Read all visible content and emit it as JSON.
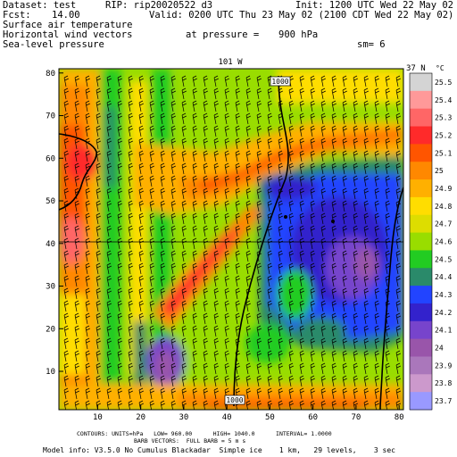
{
  "header": {
    "dataset_label": "Dataset: test",
    "rip_label": "RIP: rip20020522 d3",
    "init_label": "Init: 1200 UTC Wed 22 May 02",
    "fcst_label": "Fcst:",
    "fcst_value": "14.00",
    "valid_label": "Valid: 0200 UTC Thu 23 May 02 (2100 CDT Wed 22 May 02)",
    "field_1": "Surface air temperature",
    "field_2": "Horizontal wind vectors",
    "pressure_label": "at pressure =",
    "pressure_value": "900 hPa",
    "field_3": "Sea-level pressure",
    "sm_label": "sm= 6"
  },
  "plot": {
    "top_label": "101 W",
    "right_label": "37 N",
    "contour_label_top": "1000",
    "contour_label_bottom": "1000"
  },
  "chart_data": {
    "type": "heatmap",
    "title": "",
    "xlabel": "",
    "ylabel": "",
    "xlim": [
      1,
      81
    ],
    "ylim": [
      1,
      81
    ],
    "x_ticks": [
      10,
      20,
      30,
      40,
      50,
      60,
      70,
      80
    ],
    "y_ticks": [
      10,
      20,
      30,
      40,
      50,
      60,
      70,
      80
    ],
    "colorbar": {
      "unit": "°C",
      "levels": [
        "25.5",
        "25.4",
        "25.3",
        "25.2",
        "25.1",
        "25",
        "24.9",
        "24.8",
        "24.7",
        "24.6",
        "24.5",
        "24.4",
        "24.3",
        "24.2",
        "24.1",
        "24",
        "23.9",
        "23.8",
        "23.7"
      ],
      "colors": [
        "#d4d4d4",
        "#ff9999",
        "#ff6666",
        "#ff2a2a",
        "#ff5500",
        "#ff8800",
        "#ffb000",
        "#ffdd00",
        "#dddd00",
        "#99dd00",
        "#22cc22",
        "#2a8a6a",
        "#2244ff",
        "#3322cc",
        "#7744cc",
        "#9955aa",
        "#aa77bb",
        "#cc99cc",
        "#9999ff"
      ]
    }
  },
  "footer": {
    "line1": "CONTOURS: UNITS=hPa   LOW= 960.00      HIGH= 1040.0      INTERVAL= 1.0000",
    "line2": "BARB VECTORS:  FULL BARB = 5 m s",
    "line3": "Model info: V3.5.0 No Cumulus Blackadar  Simple ice    1 km,   29 levels,    3 sec"
  }
}
